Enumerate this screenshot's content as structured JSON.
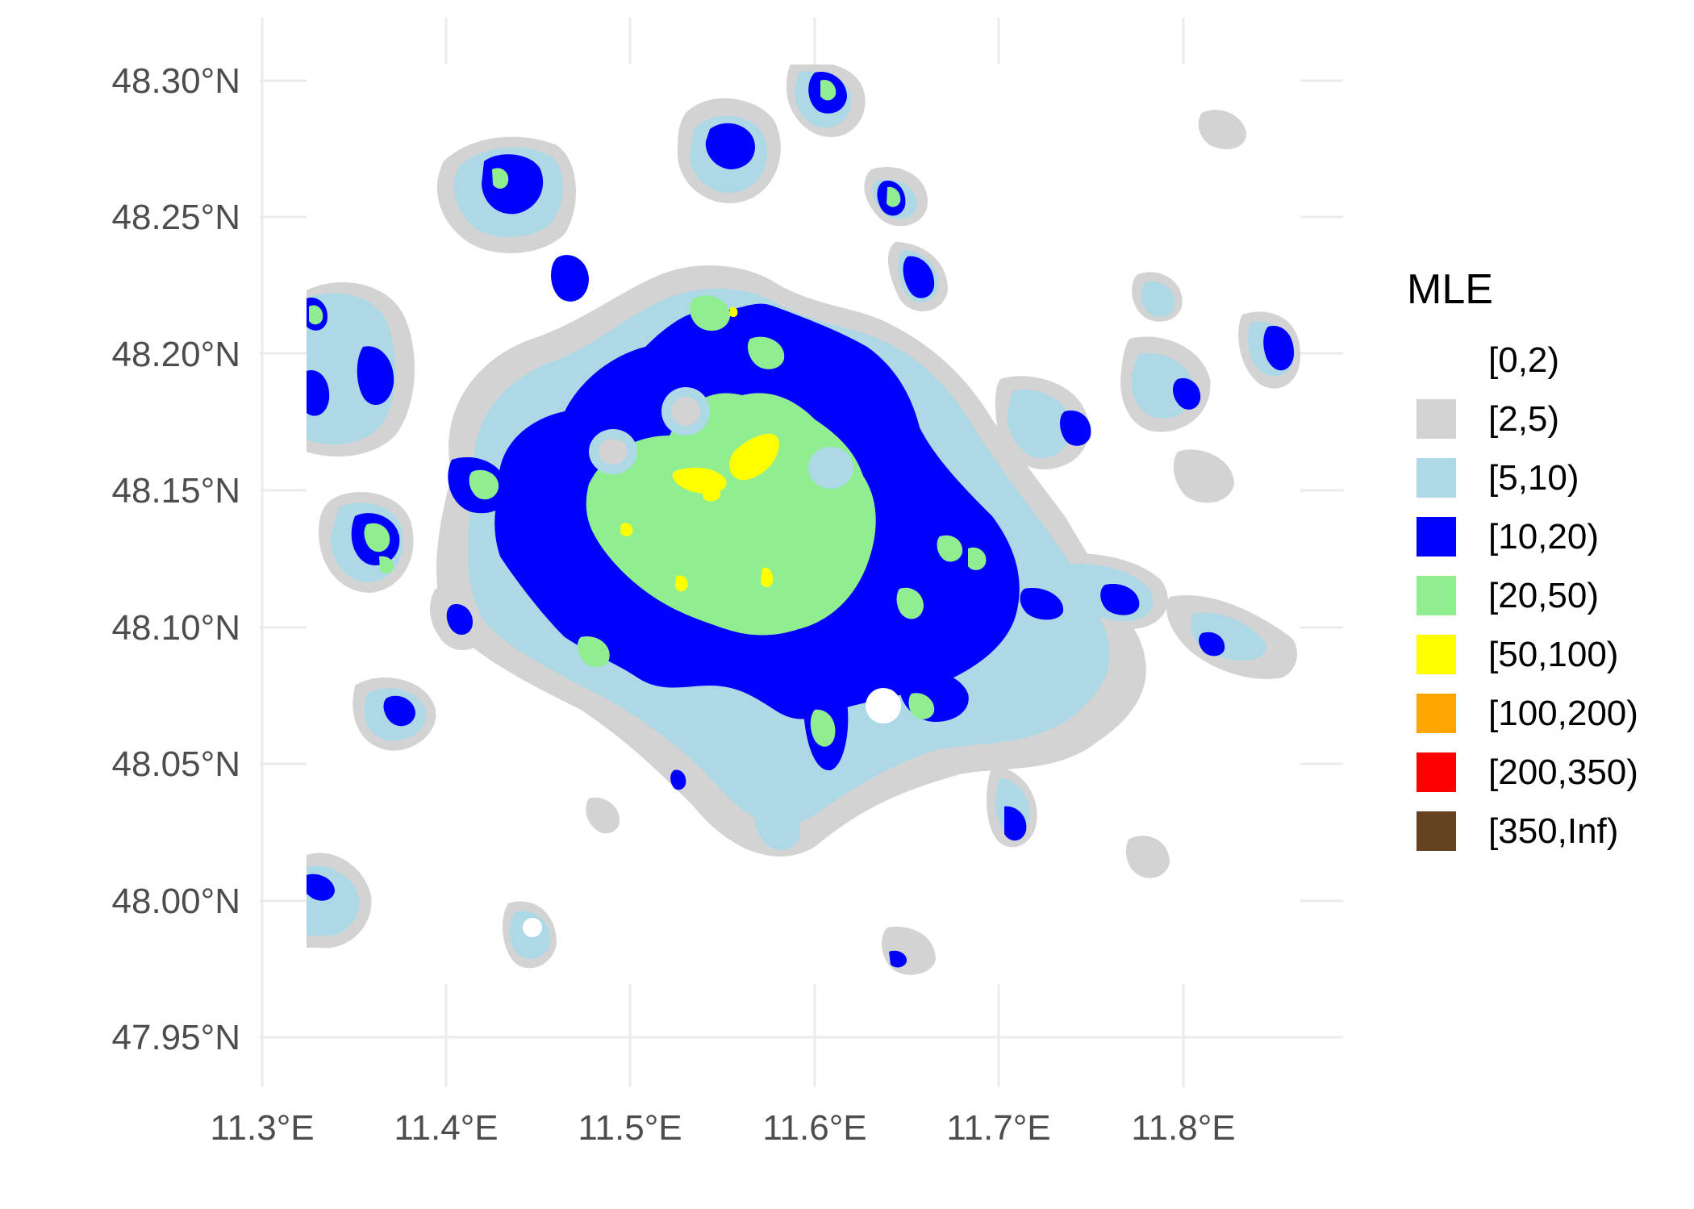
{
  "map": {
    "x_ticks": [
      "11.3°E",
      "11.4°E",
      "11.5°E",
      "11.6°E",
      "11.7°E",
      "11.8°E"
    ],
    "y_ticks": [
      "48.30°N",
      "48.25°N",
      "48.20°N",
      "48.15°N",
      "48.10°N",
      "48.05°N",
      "48.00°N",
      "47.95°N"
    ],
    "background": "#ffffff",
    "gridline_color": "#ebebeb"
  },
  "legend": {
    "title": "MLE",
    "items": [
      {
        "label": "[0,2)",
        "color": "#ffffff"
      },
      {
        "label": "[2,5)",
        "color": "#d3d3d3"
      },
      {
        "label": "[5,10)",
        "color": "#add8e6"
      },
      {
        "label": "[10,20)",
        "color": "#0000ff"
      },
      {
        "label": "[20,50)",
        "color": "#90ee90"
      },
      {
        "label": "[50,100)",
        "color": "#ffff00"
      },
      {
        "label": "[100,200)",
        "color": "#ffa500"
      },
      {
        "label": "[200,350)",
        "color": "#ff0000"
      },
      {
        "label": "[350,Inf)",
        "color": "#654321"
      }
    ]
  }
}
